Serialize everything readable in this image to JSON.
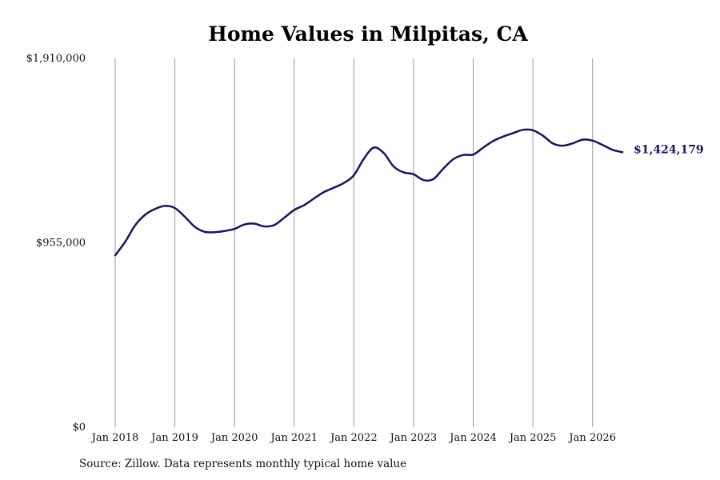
{
  "chart_data": {
    "type": "line",
    "title": "Home Values in Milpitas, CA",
    "xlabel": "",
    "ylabel": "",
    "x_ticks": [
      "Jan 2018",
      "Jan 2019",
      "Jan 2020",
      "Jan 2021",
      "Jan 2022",
      "Jan 2023",
      "Jan 2024",
      "Jan 2025",
      "Jan 2026"
    ],
    "y_ticks": [
      "$0",
      "$955,000",
      "$1,910,000"
    ],
    "ylim": [
      0,
      1910000
    ],
    "xlim": [
      "2018-01",
      "2026-07"
    ],
    "grid": "vertical",
    "end_label": "$1,424,179",
    "colors": {
      "line": "#141463",
      "grid": "#9a9a9a"
    },
    "series": [
      {
        "x": [
          "2018-01",
          "2018-03",
          "2018-05",
          "2018-07",
          "2018-09",
          "2018-11",
          "2019-01",
          "2019-03",
          "2019-05",
          "2019-07",
          "2019-09",
          "2019-11",
          "2020-01",
          "2020-03",
          "2020-05",
          "2020-07",
          "2020-09",
          "2020-11",
          "2021-01",
          "2021-03",
          "2021-05",
          "2021-07",
          "2021-09",
          "2021-11",
          "2022-01",
          "2022-03",
          "2022-05",
          "2022-07",
          "2022-09",
          "2022-11",
          "2023-01",
          "2023-03",
          "2023-05",
          "2023-07",
          "2023-09",
          "2023-11",
          "2024-01",
          "2024-03",
          "2024-05",
          "2024-07",
          "2024-09",
          "2024-11",
          "2025-01",
          "2025-03",
          "2025-05",
          "2025-07",
          "2025-09",
          "2025-11",
          "2026-01",
          "2026-03",
          "2026-05",
          "2026-07"
        ],
        "values": [
          890000,
          960000,
          1045000,
          1100000,
          1130000,
          1146000,
          1135000,
          1090000,
          1038000,
          1012000,
          1010000,
          1016000,
          1027000,
          1050000,
          1054000,
          1040000,
          1047000,
          1085000,
          1125000,
          1150000,
          1185000,
          1218000,
          1241000,
          1265000,
          1305000,
          1390000,
          1448000,
          1420000,
          1350000,
          1320000,
          1310000,
          1280000,
          1285000,
          1340000,
          1388000,
          1410000,
          1412000,
          1448000,
          1482000,
          1505000,
          1523000,
          1540000,
          1538000,
          1510000,
          1470000,
          1458000,
          1470000,
          1489000,
          1484000,
          1462000,
          1437000,
          1424179
        ]
      }
    ]
  },
  "source": "Source: Zillow. Data represents monthly typical home value"
}
